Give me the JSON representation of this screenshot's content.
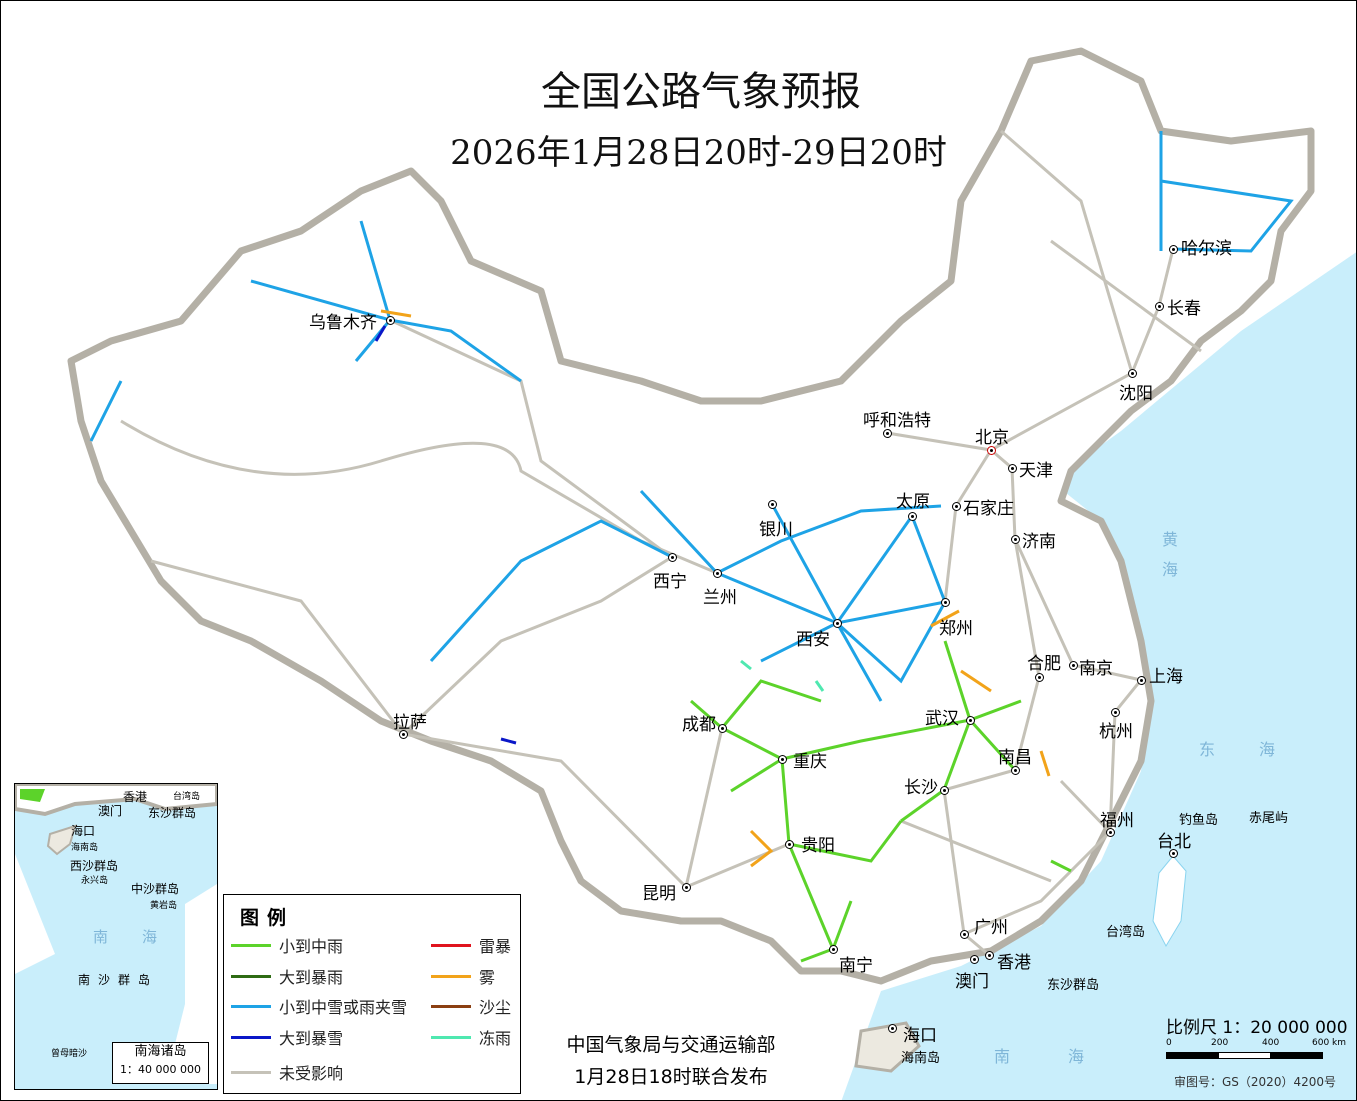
{
  "title": "全国公路气象预报",
  "subtitle": "2026年1月28日20时-29日20时",
  "colors": {
    "light_rain": "#5cd32a",
    "heavy_rain": "#2e6b14",
    "light_snow": "#1ea3e6",
    "heavy_snow": "#0a17c8",
    "thunderstorm": "#e0141e",
    "fog": "#f2a31a",
    "dust": "#8b3f12",
    "freezing_rain": "#4fe8b0",
    "unaffected": "#c5c2b8",
    "sea": "#c9eefb"
  },
  "cities": {
    "urumqi": "乌鲁木齐",
    "lhasa": "拉萨",
    "xining": "西宁",
    "lanzhou": "兰州",
    "yinchuan": "银川",
    "hohhot": "呼和浩特",
    "beijing": "北京",
    "tianjin": "天津",
    "shijiazhuang": "石家庄",
    "taiyuan": "太原",
    "jinan": "济南",
    "zhengzhou": "郑州",
    "xian": "西安",
    "chengdu": "成都",
    "chongqing": "重庆",
    "wuhan": "武汉",
    "hefei": "合肥",
    "nanjing": "南京",
    "shanghai": "上海",
    "hangzhou": "杭州",
    "nanchang": "南昌",
    "changsha": "长沙",
    "fuzhou": "福州",
    "taipei": "台北",
    "guiyang": "贵阳",
    "kunming": "昆明",
    "nanning": "南宁",
    "guangzhou": "广州",
    "hongkong": "香港",
    "macau": "澳门",
    "haikou": "海口",
    "harbin": "哈尔滨",
    "changchun": "长春",
    "shenyang": "沈阳"
  },
  "places": {
    "diaoyu": "钓鱼岛",
    "chiwei": "赤尾屿",
    "taiwan": "台湾岛",
    "dongsha": "东沙群岛",
    "hainan": "海南岛"
  },
  "seas": {
    "huanghai": "黄海",
    "donghai": "东海",
    "nanhai": "南海"
  },
  "inset": {
    "labels": {
      "hongkong": "香港",
      "macau": "澳门",
      "taiwan": "台湾岛",
      "dongsha": "东沙群岛",
      "haikou": "海口",
      "hainan": "海南岛",
      "xisha": "西沙群岛",
      "yongxing": "永兴岛",
      "zhongsha": "中沙群岛",
      "huangyan": "黄岩岛",
      "nanhai": "南海",
      "nansha": "南沙群岛",
      "zengmu": "曾母暗沙"
    },
    "box_title": "南海诸岛",
    "box_scale": "1：40 000 000"
  },
  "legend": {
    "title": "图例",
    "items": [
      {
        "label": "小到中雨",
        "color": "#5cd32a"
      },
      {
        "label": "大到暴雨",
        "color": "#2e6b14"
      },
      {
        "label": "小到中雪或雨夹雪",
        "color": "#1ea3e6"
      },
      {
        "label": "大到暴雪",
        "color": "#0a17c8"
      },
      {
        "label": "未受影响",
        "color": "#c5c2b8"
      },
      {
        "label": "雷暴",
        "color": "#e0141e"
      },
      {
        "label": "雾",
        "color": "#f2a31a"
      },
      {
        "label": "沙尘",
        "color": "#8b3f12"
      },
      {
        "label": "冻雨",
        "color": "#4fe8b0"
      }
    ]
  },
  "credit": {
    "line1": "中国气象局与交通运输部",
    "line2": "1月28日18时联合发布"
  },
  "scale": {
    "text": "比例尺 1：20 000 000",
    "ticks": [
      "0",
      "200",
      "400",
      "600 km"
    ]
  },
  "approval": "审图号：GS（2020）4200号"
}
